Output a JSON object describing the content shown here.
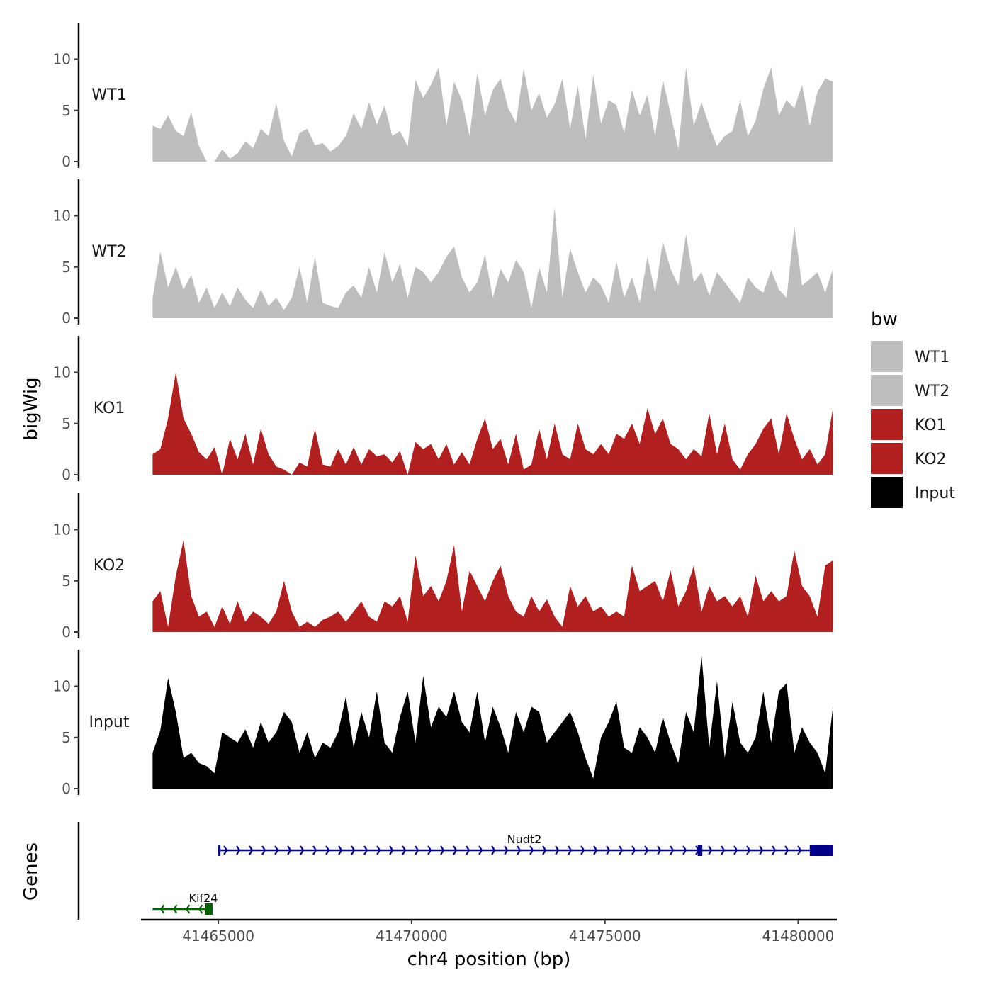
{
  "chart_data": {
    "type": "area",
    "title": "",
    "xlabel": "chr4 position (bp)",
    "ylabel": "bigWig",
    "gene_panel_label": "Genes",
    "x_range": [
      41463000,
      41481000
    ],
    "x_ticks": [
      41465000,
      41470000,
      41475000,
      41480000
    ],
    "x_tick_labels": [
      "41465000",
      "41470000",
      "41475000",
      "41480000"
    ],
    "ylim": [
      0,
      13.5
    ],
    "y_ticks": [
      0,
      5,
      10
    ],
    "y_tick_labels": [
      "0",
      "5",
      "10"
    ],
    "legend": {
      "title": "bw",
      "position": "right",
      "entries": [
        {
          "label": "WT1",
          "color": "#bebebe"
        },
        {
          "label": "WT2",
          "color": "#bebebe"
        },
        {
          "label": "KO1",
          "color": "#b21f1f"
        },
        {
          "label": "KO2",
          "color": "#b21f1f"
        },
        {
          "label": "Input",
          "color": "#000000"
        }
      ]
    },
    "series": [
      {
        "name": "WT1",
        "color": "#bebebe",
        "x": [
          41463300,
          41463500,
          41463700,
          41463900,
          41464100,
          41464300,
          41464500,
          41464700,
          41464900,
          41465100,
          41465300,
          41465500,
          41465700,
          41465900,
          41466100,
          41466300,
          41466500,
          41466700,
          41466900,
          41467100,
          41467300,
          41467500,
          41467700,
          41467900,
          41468100,
          41468300,
          41468500,
          41468700,
          41468900,
          41469100,
          41469300,
          41469500,
          41469700,
          41469900,
          41470100,
          41470300,
          41470500,
          41470700,
          41470900,
          41471100,
          41471300,
          41471500,
          41471700,
          41471900,
          41472100,
          41472300,
          41472500,
          41472700,
          41472900,
          41473100,
          41473300,
          41473500,
          41473700,
          41473900,
          41474100,
          41474300,
          41474500,
          41474700,
          41474900,
          41475100,
          41475300,
          41475500,
          41475700,
          41475900,
          41476100,
          41476300,
          41476500,
          41476700,
          41476900,
          41477100,
          41477300,
          41477500,
          41477700,
          41477900,
          41478100,
          41478300,
          41478500,
          41478700,
          41478900,
          41479100,
          41479300,
          41479500,
          41479700,
          41479900,
          41480100,
          41480300,
          41480500,
          41480700,
          41480900
        ],
        "values": [
          3.5,
          3.2,
          4.5,
          3.0,
          2.5,
          4.8,
          1.5,
          0,
          0,
          1.2,
          0.3,
          0.8,
          2.0,
          1.3,
          3.2,
          2.5,
          5.7,
          2.0,
          0.5,
          2.8,
          3.2,
          1.6,
          1.8,
          1.0,
          1.5,
          2.5,
          4.7,
          3.2,
          5.8,
          3.6,
          5.5,
          2.5,
          3.0,
          1.5,
          8.0,
          6.2,
          7.5,
          9.2,
          3.5,
          7.8,
          6.0,
          2.5,
          8.7,
          4.5,
          7.0,
          8.1,
          5.2,
          3.8,
          9.1,
          5.0,
          6.7,
          4.3,
          5.6,
          8.1,
          3.2,
          7.4,
          2.2,
          8.5,
          3.7,
          6.0,
          5.5,
          2.8,
          7.0,
          4.5,
          6.5,
          2.5,
          8.0,
          4.7,
          1.2,
          9.2,
          3.5,
          5.8,
          3.5,
          1.5,
          2.5,
          3.0,
          6.0,
          2.5,
          4.0,
          7.1,
          9.2,
          4.5,
          6.0,
          5.2,
          7.5,
          3.5,
          6.8,
          8.1,
          7.8
        ]
      },
      {
        "name": "WT2",
        "color": "#bebebe",
        "x": [
          41463300,
          41463500,
          41463700,
          41463900,
          41464100,
          41464300,
          41464500,
          41464700,
          41464900,
          41465100,
          41465300,
          41465500,
          41465700,
          41465900,
          41466100,
          41466300,
          41466500,
          41466700,
          41466900,
          41467100,
          41467300,
          41467500,
          41467700,
          41467900,
          41468100,
          41468300,
          41468500,
          41468700,
          41468900,
          41469100,
          41469300,
          41469500,
          41469700,
          41469900,
          41470100,
          41470300,
          41470500,
          41470700,
          41470900,
          41471100,
          41471300,
          41471500,
          41471700,
          41471900,
          41472100,
          41472300,
          41472500,
          41472700,
          41472900,
          41473100,
          41473300,
          41473500,
          41473700,
          41473900,
          41474100,
          41474300,
          41474500,
          41474700,
          41474900,
          41475100,
          41475300,
          41475500,
          41475700,
          41475900,
          41476100,
          41476300,
          41476500,
          41476700,
          41476900,
          41477100,
          41477300,
          41477500,
          41477700,
          41477900,
          41478100,
          41478300,
          41478500,
          41478700,
          41478900,
          41479100,
          41479300,
          41479500,
          41479700,
          41479900,
          41480100,
          41480300,
          41480500,
          41480700,
          41480900
        ],
        "values": [
          2.0,
          6.5,
          3.0,
          5.0,
          2.8,
          4.2,
          1.5,
          3.0,
          1.0,
          2.5,
          1.2,
          3.0,
          1.8,
          1.0,
          2.8,
          1.2,
          2.0,
          0.8,
          2.0,
          5.0,
          1.5,
          6.0,
          1.5,
          1.2,
          1.0,
          2.5,
          3.2,
          2.0,
          5.0,
          2.5,
          6.5,
          3.5,
          5.3,
          2.0,
          5.0,
          4.5,
          3.5,
          4.5,
          6.0,
          7.0,
          4.0,
          2.5,
          3.5,
          6.2,
          2.0,
          4.8,
          3.5,
          5.7,
          4.5,
          1.0,
          5.0,
          2.5,
          10.8,
          2.0,
          6.8,
          4.5,
          2.5,
          4.0,
          3.2,
          1.5,
          5.5,
          2.0,
          4.0,
          1.5,
          6.0,
          2.5,
          7.5,
          4.8,
          3.2,
          8.2,
          3.5,
          4.5,
          2.2,
          4.5,
          3.5,
          2.5,
          1.5,
          4.0,
          3.0,
          2.5,
          4.7,
          2.8,
          2.0,
          9.0,
          3.2,
          3.8,
          4.5,
          2.5,
          4.8
        ]
      },
      {
        "name": "KO1",
        "color": "#b21f1f",
        "x": [
          41463300,
          41463500,
          41463700,
          41463900,
          41464100,
          41464300,
          41464500,
          41464700,
          41464900,
          41465100,
          41465300,
          41465500,
          41465700,
          41465900,
          41466100,
          41466300,
          41466500,
          41466700,
          41466900,
          41467100,
          41467300,
          41467500,
          41467700,
          41467900,
          41468100,
          41468300,
          41468500,
          41468700,
          41468900,
          41469100,
          41469300,
          41469500,
          41469700,
          41469900,
          41470100,
          41470300,
          41470500,
          41470700,
          41470900,
          41471100,
          41471300,
          41471500,
          41471700,
          41471900,
          41472100,
          41472300,
          41472500,
          41472700,
          41472900,
          41473100,
          41473300,
          41473500,
          41473700,
          41473900,
          41474100,
          41474300,
          41474500,
          41474700,
          41474900,
          41475100,
          41475300,
          41475500,
          41475700,
          41475900,
          41476100,
          41476300,
          41476500,
          41476700,
          41476900,
          41477100,
          41477300,
          41477500,
          41477700,
          41477900,
          41478100,
          41478300,
          41478500,
          41478700,
          41478900,
          41479100,
          41479300,
          41479500,
          41479700,
          41479900,
          41480100,
          41480300,
          41480500,
          41480700,
          41480900
        ],
        "values": [
          2.0,
          2.5,
          5.5,
          10.0,
          5.5,
          4.0,
          2.2,
          1.5,
          2.7,
          0,
          3.5,
          1.5,
          4.0,
          1.0,
          4.5,
          2.0,
          0.8,
          0.5,
          0,
          1.2,
          0.8,
          4.5,
          1.0,
          0.8,
          2.5,
          1.0,
          2.7,
          1.0,
          2.5,
          1.8,
          2.0,
          1.2,
          2.3,
          0,
          3.2,
          2.5,
          3.0,
          1.5,
          3.0,
          1.0,
          2.2,
          1.0,
          3.5,
          5.5,
          2.5,
          3.5,
          1.0,
          4.0,
          0.5,
          1.0,
          4.5,
          1.5,
          5.0,
          2.0,
          1.5,
          5.0,
          2.5,
          2.0,
          3.0,
          2.0,
          4.0,
          3.5,
          5.0,
          3.0,
          6.5,
          4.0,
          5.5,
          3.0,
          2.5,
          1.5,
          2.5,
          1.8,
          6.0,
          2.0,
          5.0,
          1.5,
          0.5,
          2.0,
          3.0,
          4.5,
          5.5,
          2.0,
          6.0,
          3.5,
          1.5,
          2.5,
          1.0,
          2.0,
          6.5
        ]
      },
      {
        "name": "KO2",
        "color": "#b21f1f",
        "x": [
          41463300,
          41463500,
          41463700,
          41463900,
          41464100,
          41464300,
          41464500,
          41464700,
          41464900,
          41465100,
          41465300,
          41465500,
          41465700,
          41465900,
          41466100,
          41466300,
          41466500,
          41466700,
          41466900,
          41467100,
          41467300,
          41467500,
          41467700,
          41467900,
          41468100,
          41468300,
          41468500,
          41468700,
          41468900,
          41469100,
          41469300,
          41469500,
          41469700,
          41469900,
          41470100,
          41470300,
          41470500,
          41470700,
          41470900,
          41471100,
          41471300,
          41471500,
          41471700,
          41471900,
          41472100,
          41472300,
          41472500,
          41472700,
          41472900,
          41473100,
          41473300,
          41473500,
          41473700,
          41473900,
          41474100,
          41474300,
          41474500,
          41474700,
          41474900,
          41475100,
          41475300,
          41475500,
          41475700,
          41475900,
          41476100,
          41476300,
          41476500,
          41476700,
          41476900,
          41477100,
          41477300,
          41477500,
          41477700,
          41477900,
          41478100,
          41478300,
          41478500,
          41478700,
          41478900,
          41479100,
          41479300,
          41479500,
          41479700,
          41479900,
          41480100,
          41480300,
          41480500,
          41480700,
          41480900
        ],
        "values": [
          3.0,
          4.0,
          0.5,
          5.5,
          9.0,
          3.5,
          1.5,
          2.0,
          0.5,
          2.5,
          0.8,
          3.0,
          1.0,
          2.0,
          1.5,
          0.8,
          2.0,
          5.0,
          2.0,
          0.5,
          1.0,
          0.5,
          1.2,
          1.5,
          2.0,
          1.0,
          2.0,
          3.0,
          1.5,
          1.0,
          3.0,
          2.5,
          3.5,
          1.0,
          7.5,
          3.5,
          4.5,
          3.0,
          5.0,
          8.5,
          2.0,
          6.0,
          4.5,
          3.0,
          5.0,
          6.5,
          3.5,
          2.0,
          1.5,
          3.5,
          2.0,
          3.2,
          1.5,
          0.5,
          4.5,
          2.5,
          3.5,
          2.0,
          2.5,
          1.5,
          2.0,
          1.5,
          6.5,
          4.0,
          4.5,
          5.0,
          3.0,
          6.0,
          2.5,
          4.0,
          6.5,
          2.0,
          4.5,
          3.0,
          3.5,
          2.5,
          3.5,
          1.5,
          5.5,
          3.0,
          4.0,
          3.0,
          3.5,
          8.0,
          4.5,
          3.5,
          1.5,
          6.5,
          7.0
        ]
      },
      {
        "name": "Input",
        "color": "#000000",
        "x": [
          41463300,
          41463500,
          41463700,
          41463900,
          41464100,
          41464300,
          41464500,
          41464700,
          41464900,
          41465100,
          41465300,
          41465500,
          41465700,
          41465900,
          41466100,
          41466300,
          41466500,
          41466700,
          41466900,
          41467100,
          41467300,
          41467500,
          41467700,
          41467900,
          41468100,
          41468300,
          41468500,
          41468700,
          41468900,
          41469100,
          41469300,
          41469500,
          41469700,
          41469900,
          41470100,
          41470300,
          41470500,
          41470700,
          41470900,
          41471100,
          41471300,
          41471500,
          41471700,
          41471900,
          41472100,
          41472300,
          41472500,
          41472700,
          41472900,
          41473100,
          41473300,
          41473500,
          41473700,
          41473900,
          41474100,
          41474300,
          41474500,
          41474700,
          41474900,
          41475100,
          41475300,
          41475500,
          41475700,
          41475900,
          41476100,
          41476300,
          41476500,
          41476700,
          41476900,
          41477100,
          41477300,
          41477500,
          41477700,
          41477900,
          41478100,
          41478300,
          41478500,
          41478700,
          41478900,
          41479100,
          41479300,
          41479500,
          41479700,
          41479900,
          41480100,
          41480300,
          41480500,
          41480700,
          41480900
        ],
        "values": [
          3.5,
          5.7,
          10.8,
          7.5,
          3.0,
          3.5,
          2.5,
          2.2,
          1.5,
          5.5,
          5.0,
          4.5,
          5.8,
          4.0,
          6.5,
          4.5,
          5.5,
          7.5,
          6.5,
          3.5,
          5.5,
          3.0,
          4.5,
          4.0,
          5.5,
          9.0,
          4.0,
          7.5,
          5.0,
          9.5,
          4.5,
          3.5,
          7.0,
          9.5,
          4.5,
          11.0,
          6.0,
          8.0,
          7.0,
          9.5,
          6.5,
          5.5,
          9.5,
          4.5,
          8.0,
          6.0,
          3.5,
          7.5,
          5.5,
          8.0,
          7.5,
          4.5,
          5.5,
          6.5,
          7.5,
          5.5,
          3.0,
          1.0,
          5.0,
          6.5,
          8.5,
          4.0,
          3.5,
          6.0,
          5.0,
          3.5,
          7.0,
          4.5,
          2.5,
          7.5,
          5.5,
          13.0,
          4.0,
          10.5,
          3.0,
          8.5,
          4.5,
          3.5,
          5.0,
          9.5,
          4.5,
          9.5,
          10.3,
          3.5,
          6.0,
          4.5,
          3.5,
          1.5,
          8.0
        ]
      }
    ],
    "genes": [
      {
        "name": "Nudt2",
        "start": 41465000,
        "end": 41480900,
        "strand": "+",
        "color": "#00008b",
        "exons": [
          [
            41465000,
            41465030
          ],
          [
            41477400,
            41477520
          ],
          [
            41480300,
            41480900
          ]
        ]
      },
      {
        "name": "Kif24",
        "start": 41463300,
        "end": 41464850,
        "strand": "-",
        "color": "#006400",
        "exons": [
          [
            41464650,
            41464850
          ]
        ]
      }
    ]
  }
}
